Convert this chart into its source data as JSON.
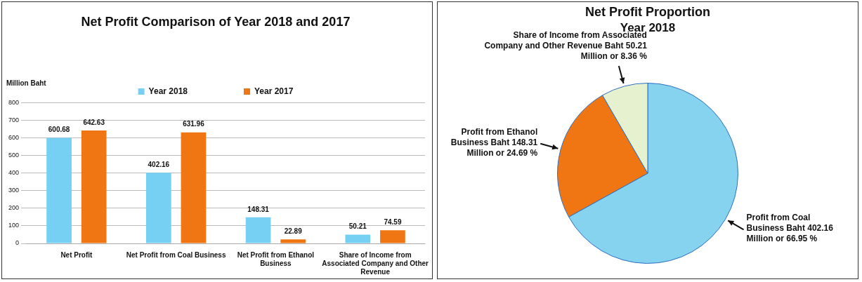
{
  "chart_data": [
    {
      "type": "bar",
      "title": "Net Profit Comparison of Year 2018 and 2017",
      "ylabel": "Million Baht",
      "categories": [
        "Net Profit",
        "Net Profit from Coal Business",
        "Net Profit from Ethanol Business",
        "Share of Income from Associated Company and Other Revenue"
      ],
      "series": [
        {
          "name": "Year 2018",
          "color": "#75d0f3",
          "values": [
            600.68,
            402.16,
            148.31,
            50.21
          ]
        },
        {
          "name": "Year 2017",
          "color": "#f07613",
          "values": [
            642.63,
            631.96,
            22.89,
            74.59
          ]
        }
      ],
      "ylim": [
        0,
        800
      ],
      "yticks": [
        0,
        100,
        200,
        300,
        400,
        500,
        600,
        700,
        800
      ],
      "grid": "y",
      "legend": "top",
      "data_labels": true
    },
    {
      "type": "pie",
      "title": "Net Profit Proportion",
      "subtitle": "Year 2018",
      "categories": [
        "Profit from Coal Business Baht 402.16 Million or 66.95 %",
        "Profit from Ethanol Business Baht 148.31 Million or 24.69 %",
        "Share of Income from Associated Company and Other Revenue Baht 50.21 Million or 8.36 %"
      ],
      "values": [
        402.16,
        148.31,
        50.21
      ],
      "colors": [
        "#85d3ee",
        "#f07613",
        "#e6f2cf"
      ]
    }
  ]
}
